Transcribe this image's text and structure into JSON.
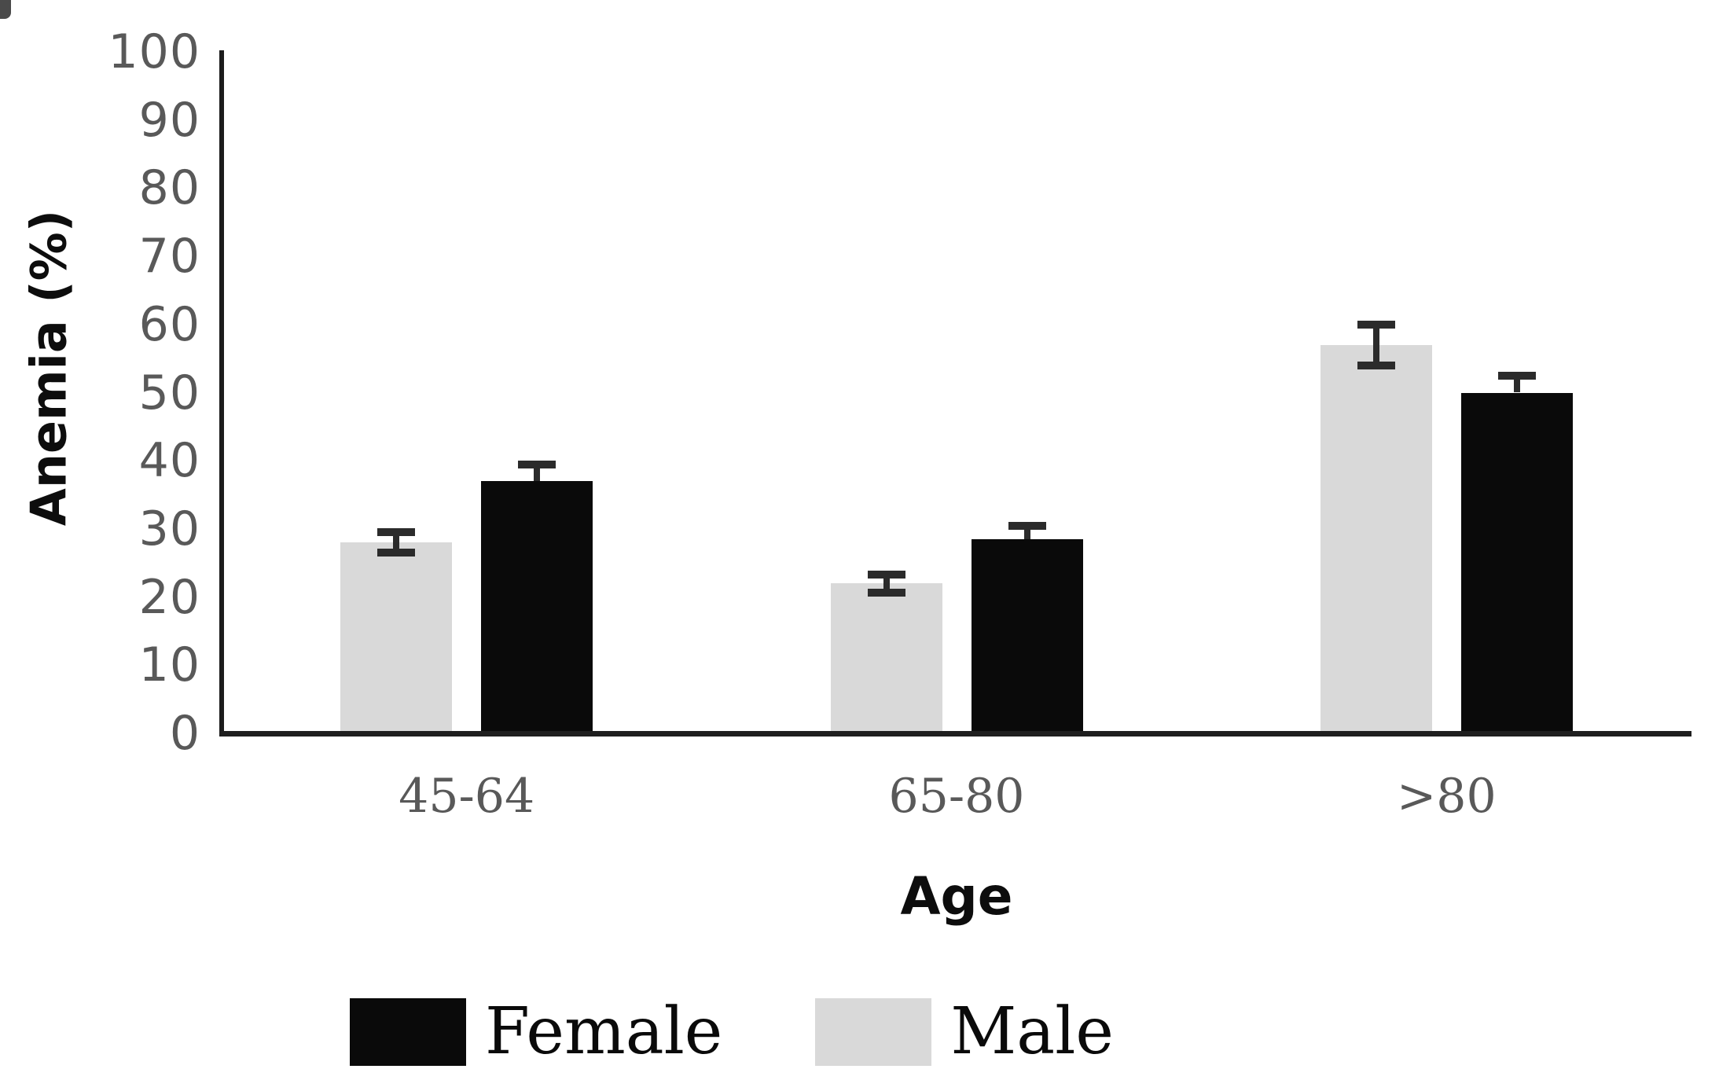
{
  "chart_data": {
    "type": "bar",
    "title": "",
    "categories": [
      "45-64",
      "65-80",
      ">80"
    ],
    "series": [
      {
        "name": "Male",
        "color": "#d9d9d9",
        "values": [
          28,
          22,
          57
        ],
        "errors": [
          1.5,
          1.3,
          3.0
        ],
        "error_style": "both"
      },
      {
        "name": "Female",
        "color": "#0a0a0a",
        "values": [
          37,
          28.5,
          50
        ],
        "errors": [
          2.5,
          2.0,
          2.5
        ],
        "error_style": "upper"
      }
    ],
    "xlabel": "Age",
    "ylabel": "Anemia (%)",
    "ylim": [
      0,
      100
    ],
    "ytick_step": 10,
    "yticks": [
      "100",
      "90",
      "80",
      "70",
      "60",
      "50",
      "40",
      "30",
      "20",
      "10",
      "0"
    ],
    "grid": false,
    "error_bars": true,
    "legend_position": "bottom",
    "legend_order": [
      "Female",
      "Male"
    ],
    "colors": {
      "axis": "#1f1f1f",
      "tick_text": "#595959",
      "error_bar": "#2b2b2b",
      "female_bar": "#0a0a0a",
      "male_bar": "#d9d9d9"
    }
  }
}
